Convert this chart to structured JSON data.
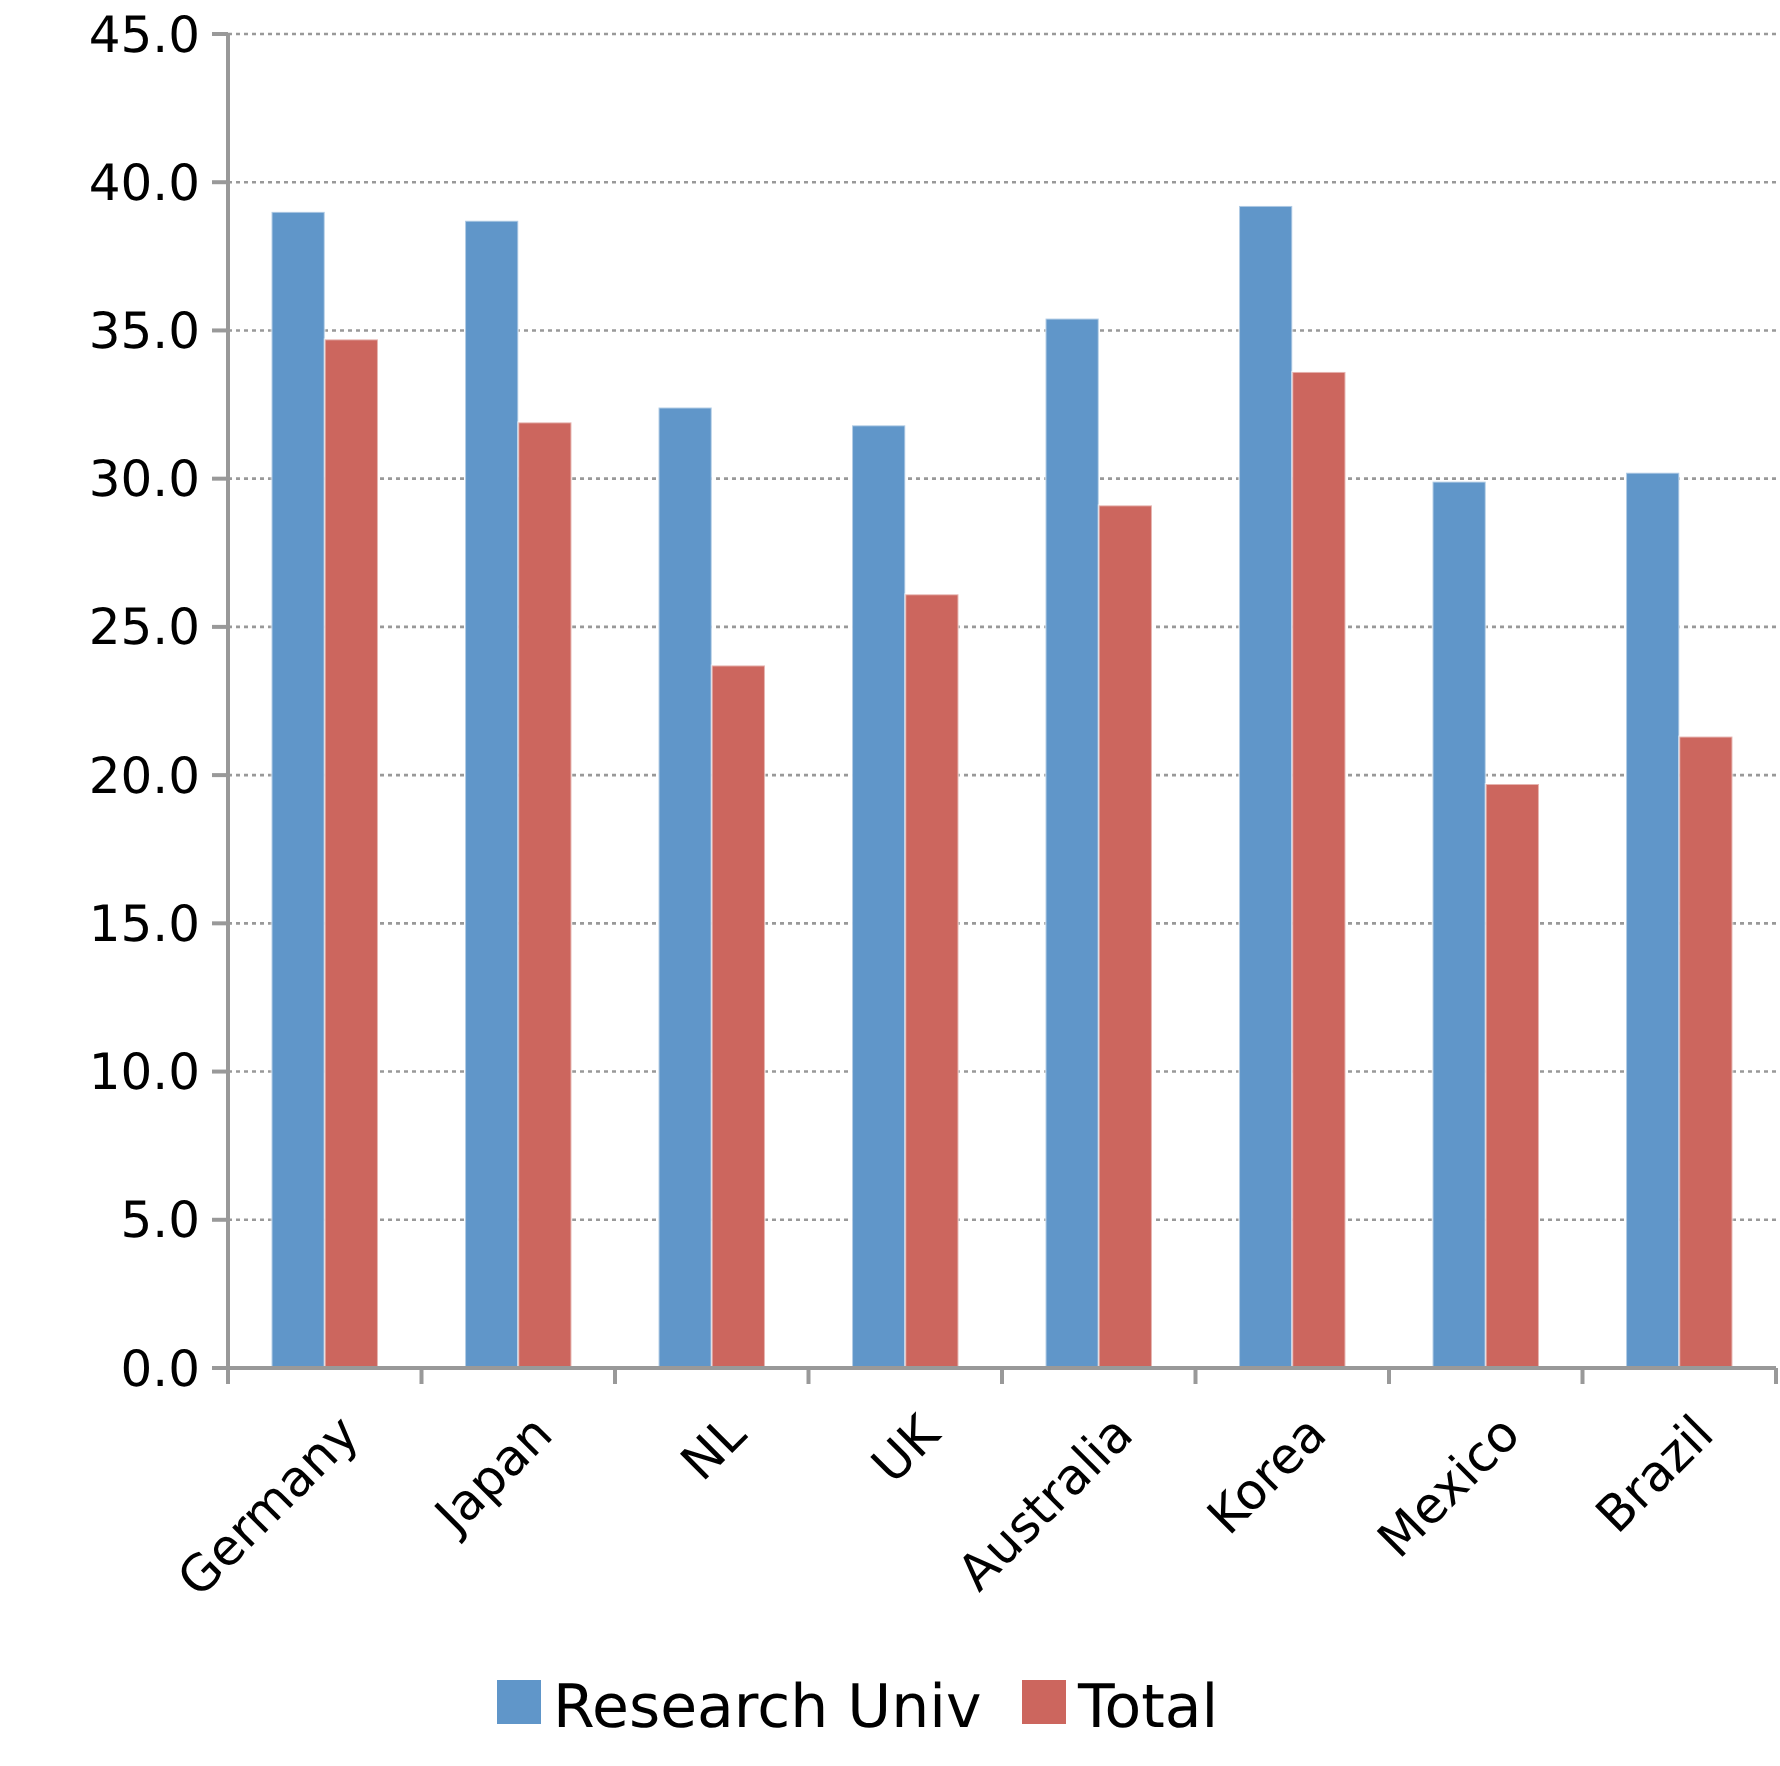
{
  "chart_data": {
    "type": "bar",
    "categories": [
      "Germany",
      "Japan",
      "NL",
      "UK",
      "Australia",
      "Korea",
      "Mexico",
      "Brazil"
    ],
    "series": [
      {
        "name": "Research Univ",
        "color": "#6096c9",
        "values": [
          39.0,
          38.7,
          32.4,
          31.8,
          35.4,
          39.2,
          29.9,
          30.2
        ]
      },
      {
        "name": "Total",
        "color": "#cc665e",
        "values": [
          34.7,
          31.9,
          23.7,
          26.1,
          29.1,
          33.6,
          19.7,
          21.3
        ]
      }
    ],
    "ylim": [
      0,
      45
    ],
    "yticks": [
      {
        "value": 0,
        "label": "0.0"
      },
      {
        "value": 5,
        "label": "5.0"
      },
      {
        "value": 10,
        "label": "10.0"
      },
      {
        "value": 15,
        "label": "15.0"
      },
      {
        "value": 20,
        "label": "20.0"
      },
      {
        "value": 25,
        "label": "25.0"
      },
      {
        "value": 30,
        "label": "30.0"
      },
      {
        "value": 35,
        "label": "35.0"
      },
      {
        "value": 40,
        "label": "40.0"
      },
      {
        "value": 45,
        "label": "45.0"
      }
    ],
    "grid": "y",
    "legend": "bottom"
  }
}
